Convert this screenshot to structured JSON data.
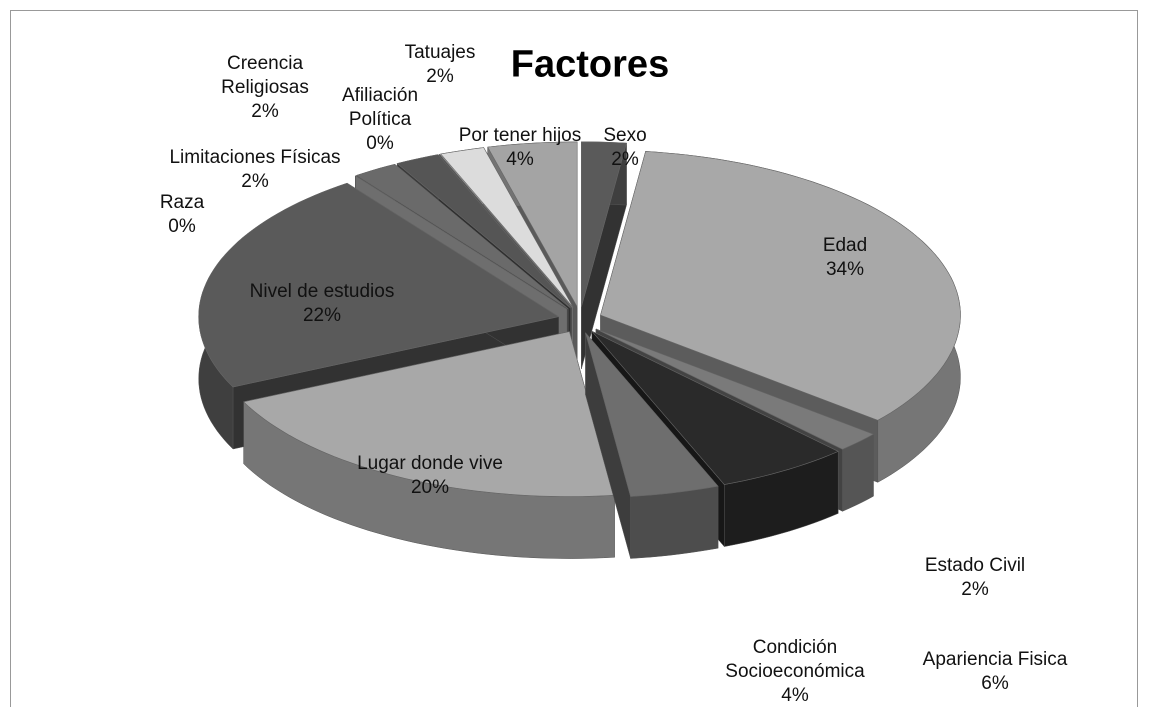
{
  "chart_data": {
    "type": "pie",
    "title": "Factores",
    "categories": [
      "Sexo",
      "Edad",
      "Estado Civil",
      "Apariencia Fisica",
      "Condición Socioeconómica",
      "Lugar donde vive",
      "Nivel de estudios",
      "Raza",
      "Limitaciones Físicas",
      "Creencia Religiosas",
      "Afiliación Política",
      "Tatuajes",
      "Por tener hijos"
    ],
    "values": [
      2,
      34,
      2,
      6,
      4,
      20,
      22,
      0,
      2,
      2,
      0,
      2,
      4
    ],
    "value_labels": [
      "2%",
      "34%",
      "2%",
      "6%",
      "4%",
      "20%",
      "22%",
      "0%",
      "2%",
      "2%",
      "0%",
      "2%",
      "4%"
    ],
    "colors": [
      "#5a5a5a",
      "#a8a8a8",
      "#7a7a7a",
      "#2a2a2a",
      "#6e6e6e",
      "#a8a8a8",
      "#5a5a5a",
      "#c8c8c8",
      "#6a6a6a",
      "#555555",
      "#8a8a8a",
      "#dcdcdc",
      "#a4a4a4"
    ]
  }
}
